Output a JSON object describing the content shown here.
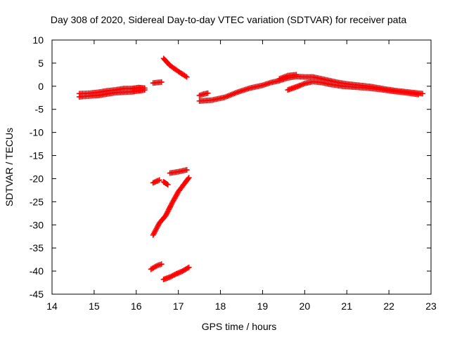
{
  "chart_data": {
    "type": "scatter",
    "title": "Day 308 of 2020, Sidereal Day-to-day VTEC variation (SDTVAR) for receiver pata",
    "xlabel": "GPS time / hours",
    "ylabel": "SDTVAR / TECUs",
    "xlim": [
      14,
      23
    ],
    "ylim": [
      -45,
      10
    ],
    "x_ticks": [
      14,
      15,
      16,
      17,
      18,
      19,
      20,
      21,
      22,
      23
    ],
    "y_ticks": [
      10,
      5,
      0,
      -5,
      -10,
      -15,
      -20,
      -25,
      -30,
      -35,
      -40,
      -45
    ],
    "grid": false,
    "marker": "plus",
    "color": "#ff0000",
    "series": [
      {
        "segments": [
          [
            [
              14.65,
              -2.3
            ],
            [
              14.9,
              -2.1
            ],
            [
              15.1,
              -2.0
            ],
            [
              15.3,
              -1.7
            ],
            [
              15.5,
              -1.4
            ],
            [
              15.7,
              -1.3
            ],
            [
              15.9,
              -1.2
            ],
            [
              16.05,
              -1.0
            ],
            [
              16.2,
              -0.8
            ]
          ],
          [
            [
              14.65,
              -1.6
            ],
            [
              14.9,
              -1.5
            ],
            [
              15.1,
              -1.3
            ],
            [
              15.3,
              -1.0
            ],
            [
              15.5,
              -0.8
            ],
            [
              15.7,
              -0.5
            ],
            [
              15.9,
              -0.5
            ],
            [
              16.05,
              -0.3
            ],
            [
              16.2,
              -0.4
            ]
          ],
          [
            [
              16.4,
              0.7
            ],
            [
              16.5,
              0.8
            ],
            [
              16.6,
              0.9
            ]
          ],
          [
            [
              16.65,
              6.0
            ],
            [
              16.8,
              4.5
            ],
            [
              17.0,
              3.2
            ],
            [
              17.2,
              2.0
            ]
          ],
          [
            [
              17.5,
              -2.0
            ],
            [
              17.6,
              -1.7
            ],
            [
              17.7,
              -1.5
            ]
          ],
          [
            [
              17.5,
              -3.2
            ],
            [
              17.8,
              -3.0
            ],
            [
              18.1,
              -2.4
            ],
            [
              18.4,
              -1.3
            ],
            [
              18.7,
              -0.4
            ],
            [
              19.0,
              0.2
            ],
            [
              19.2,
              0.8
            ],
            [
              19.4,
              1.2
            ],
            [
              19.6,
              1.8
            ],
            [
              19.8,
              2.1
            ],
            [
              20.0,
              2.0
            ],
            [
              20.2,
              2.0
            ],
            [
              20.4,
              1.6
            ],
            [
              20.6,
              1.2
            ],
            [
              20.8,
              0.8
            ],
            [
              21.0,
              0.5
            ],
            [
              21.3,
              0.2
            ],
            [
              21.6,
              -0.1
            ],
            [
              21.9,
              -0.6
            ],
            [
              22.2,
              -1.0
            ],
            [
              22.5,
              -1.3
            ],
            [
              22.8,
              -1.6
            ]
          ],
          [
            [
              19.4,
              1.6
            ],
            [
              19.6,
              2.3
            ],
            [
              19.8,
              2.5
            ]
          ],
          [
            [
              19.6,
              -0.8
            ],
            [
              19.75,
              -0.3
            ],
            [
              19.9,
              0.2
            ],
            [
              20.0,
              0.6
            ],
            [
              20.2,
              1.0
            ],
            [
              20.4,
              0.8
            ],
            [
              20.6,
              0.4
            ],
            [
              20.9,
              0.0
            ],
            [
              21.2,
              -0.2
            ],
            [
              21.5,
              -0.4
            ],
            [
              21.8,
              -0.7
            ],
            [
              22.1,
              -1.1
            ],
            [
              22.4,
              -1.4
            ],
            [
              22.7,
              -1.8
            ]
          ],
          [
            [
              16.4,
              -20.9
            ],
            [
              16.55,
              -20.3
            ]
          ],
          [
            [
              16.65,
              -20.7
            ],
            [
              16.75,
              -21.3
            ]
          ],
          [
            [
              16.8,
              -18.8
            ],
            [
              17.0,
              -18.5
            ],
            [
              17.2,
              -18.1
            ]
          ],
          [
            [
              16.4,
              -32.2
            ],
            [
              16.55,
              -29.6
            ],
            [
              16.7,
              -28.0
            ],
            [
              16.85,
              -25.3
            ],
            [
              17.0,
              -22.8
            ],
            [
              17.15,
              -21.0
            ],
            [
              17.25,
              -19.8
            ]
          ],
          [
            [
              16.35,
              -39.6
            ],
            [
              16.5,
              -38.8
            ],
            [
              16.6,
              -38.5
            ]
          ],
          [
            [
              16.65,
              -41.8
            ],
            [
              16.8,
              -41.3
            ],
            [
              16.95,
              -40.6
            ],
            [
              17.1,
              -40.0
            ],
            [
              17.25,
              -39.2
            ]
          ]
        ]
      }
    ]
  }
}
